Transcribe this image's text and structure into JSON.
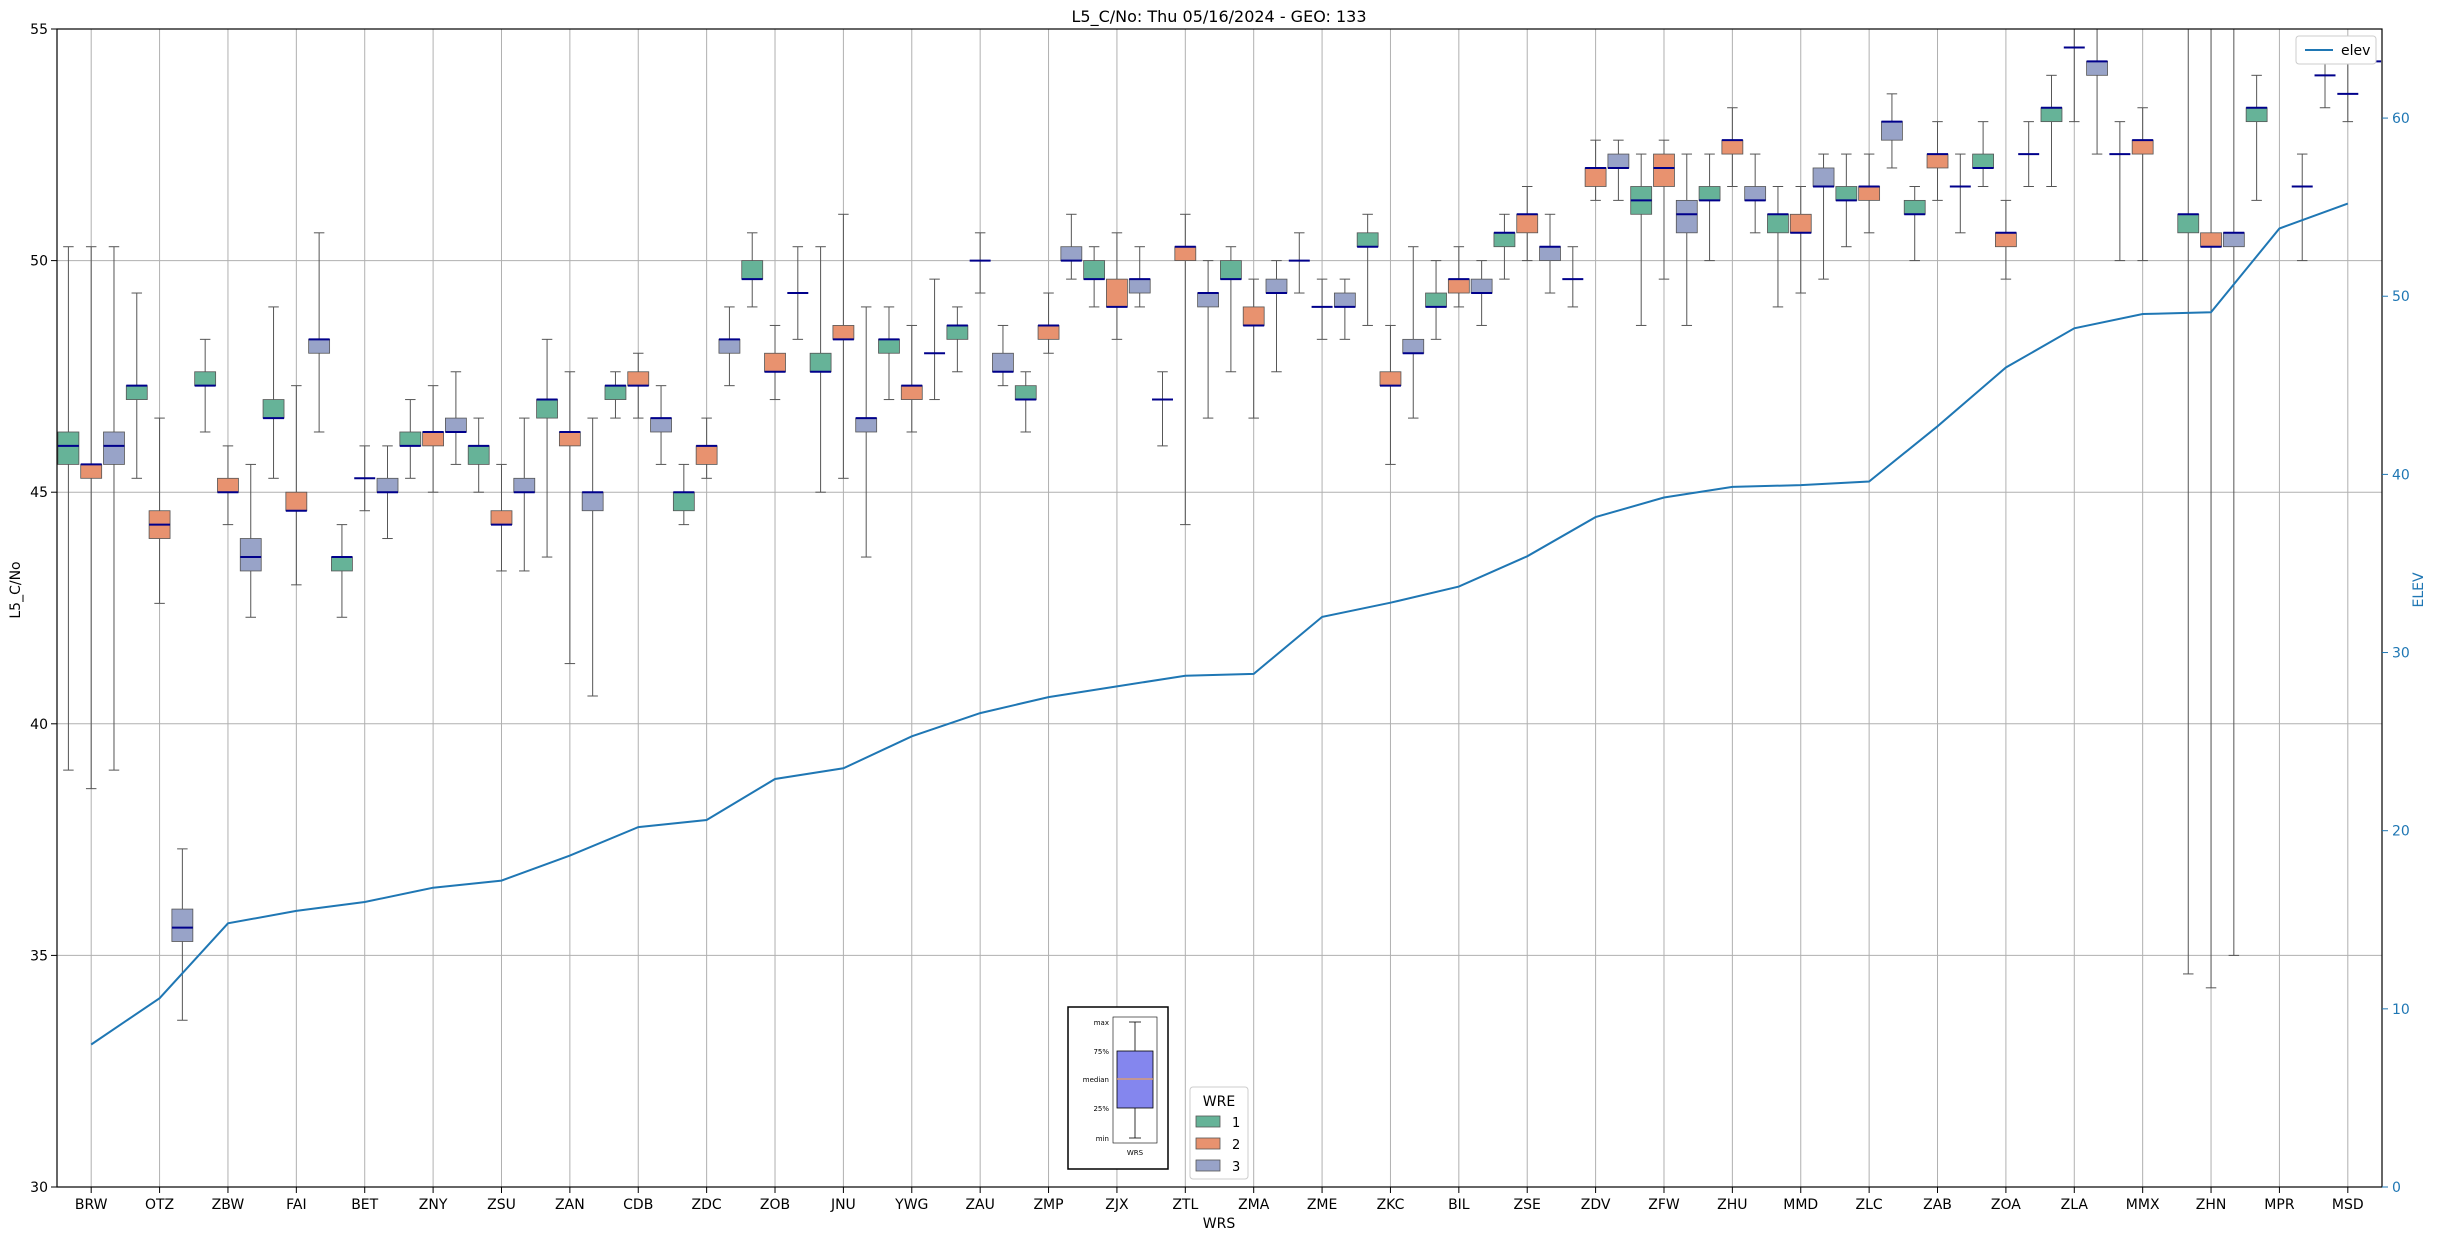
{
  "chart_data": {
    "type": "box",
    "title": "L5_C/No: Thu 05/16/2024 - GEO: 133",
    "xlabel": "WRS",
    "ylabel": "L5_C/No",
    "y2label": "ELEV",
    "ylim": [
      30,
      55
    ],
    "y2lim": [
      0,
      65
    ],
    "yticks": [
      "30",
      "35",
      "40",
      "45",
      "50",
      "55"
    ],
    "y2ticks": [
      "0",
      "10",
      "20",
      "30",
      "40",
      "50",
      "60"
    ],
    "grid": true,
    "categories": [
      "BRW",
      "OTZ",
      "ZBW",
      "FAI",
      "BET",
      "ZNY",
      "ZSU",
      "ZAN",
      "CDB",
      "ZDC",
      "ZOB",
      "JNU",
      "YWG",
      "ZAU",
      "ZMP",
      "ZJX",
      "ZTL",
      "ZMA",
      "ZME",
      "ZKC",
      "BIL",
      "ZSE",
      "ZDV",
      "ZFW",
      "ZHU",
      "MMD",
      "ZLC",
      "ZAB",
      "ZOA",
      "ZLA",
      "MMX",
      "ZHN",
      "MPR",
      "MSD"
    ],
    "wre_legend": {
      "title": "WRE",
      "items": [
        {
          "label": "1",
          "color": "#66b398"
        },
        {
          "label": "2",
          "color": "#e8926f"
        },
        {
          "label": "3",
          "color": "#98a3c8"
        }
      ]
    },
    "elev_legend": {
      "label": "elev",
      "color": "#1f77b4"
    },
    "key_box": {
      "labels": [
        "max",
        "75%",
        "median",
        "25%",
        "min"
      ],
      "xlabel": "WRS"
    },
    "median_color": "#00008b",
    "boxes": [
      {
        "cat": "BRW",
        "wre": 1,
        "min": 39.0,
        "q1": 45.6,
        "median": 46.0,
        "q3": 46.3,
        "max": 50.3
      },
      {
        "cat": "BRW",
        "wre": 2,
        "min": 38.6,
        "q1": 45.3,
        "median": 45.6,
        "q3": 45.6,
        "max": 50.3
      },
      {
        "cat": "BRW",
        "wre": 3,
        "min": 39.0,
        "q1": 45.6,
        "median": 46.0,
        "q3": 46.3,
        "max": 50.3
      },
      {
        "cat": "OTZ",
        "wre": 1,
        "min": 45.3,
        "q1": 47.0,
        "median": 47.3,
        "q3": 47.3,
        "max": 49.3
      },
      {
        "cat": "OTZ",
        "wre": 2,
        "min": 42.6,
        "q1": 44.0,
        "median": 44.3,
        "q3": 44.6,
        "max": 46.6
      },
      {
        "cat": "OTZ",
        "wre": 3,
        "min": 33.6,
        "q1": 35.3,
        "median": 35.6,
        "q3": 36.0,
        "max": 37.3
      },
      {
        "cat": "ZBW",
        "wre": 1,
        "min": 46.3,
        "q1": 47.3,
        "median": 47.3,
        "q3": 47.6,
        "max": 48.3
      },
      {
        "cat": "ZBW",
        "wre": 2,
        "min": 44.3,
        "q1": 45.0,
        "median": 45.0,
        "q3": 45.3,
        "max": 46.0
      },
      {
        "cat": "ZBW",
        "wre": 3,
        "min": 42.3,
        "q1": 43.3,
        "median": 43.6,
        "q3": 44.0,
        "max": 45.6
      },
      {
        "cat": "FAI",
        "wre": 1,
        "min": 45.3,
        "q1": 46.6,
        "median": 46.6,
        "q3": 47.0,
        "max": 49.0
      },
      {
        "cat": "FAI",
        "wre": 2,
        "min": 43.0,
        "q1": 44.6,
        "median": 44.6,
        "q3": 45.0,
        "max": 47.3
      },
      {
        "cat": "FAI",
        "wre": 3,
        "min": 46.3,
        "q1": 48.0,
        "median": 48.3,
        "q3": 48.3,
        "max": 50.6
      },
      {
        "cat": "BET",
        "wre": 1,
        "min": 42.3,
        "q1": 43.3,
        "median": 43.6,
        "q3": 43.6,
        "max": 44.3
      },
      {
        "cat": "BET",
        "wre": 2,
        "min": 44.6,
        "q1": 45.3,
        "median": 45.3,
        "q3": 45.3,
        "max": 46.0
      },
      {
        "cat": "BET",
        "wre": 3,
        "min": 44.0,
        "q1": 45.0,
        "median": 45.0,
        "q3": 45.3,
        "max": 46.0
      },
      {
        "cat": "ZNY",
        "wre": 1,
        "min": 45.3,
        "q1": 46.0,
        "median": 46.0,
        "q3": 46.3,
        "max": 47.0
      },
      {
        "cat": "ZNY",
        "wre": 2,
        "min": 45.0,
        "q1": 46.0,
        "median": 46.3,
        "q3": 46.3,
        "max": 47.3
      },
      {
        "cat": "ZNY",
        "wre": 3,
        "min": 45.6,
        "q1": 46.3,
        "median": 46.3,
        "q3": 46.6,
        "max": 47.6
      },
      {
        "cat": "ZSU",
        "wre": 1,
        "min": 45.0,
        "q1": 45.6,
        "median": 46.0,
        "q3": 46.0,
        "max": 46.6
      },
      {
        "cat": "ZSU",
        "wre": 2,
        "min": 43.3,
        "q1": 44.3,
        "median": 44.3,
        "q3": 44.6,
        "max": 45.6
      },
      {
        "cat": "ZSU",
        "wre": 3,
        "min": 43.3,
        "q1": 45.0,
        "median": 45.0,
        "q3": 45.3,
        "max": 46.6
      },
      {
        "cat": "ZAN",
        "wre": 1,
        "min": 43.6,
        "q1": 46.6,
        "median": 47.0,
        "q3": 47.0,
        "max": 48.3
      },
      {
        "cat": "ZAN",
        "wre": 2,
        "min": 41.3,
        "q1": 46.0,
        "median": 46.3,
        "q3": 46.3,
        "max": 47.6
      },
      {
        "cat": "ZAN",
        "wre": 3,
        "min": 40.6,
        "q1": 44.6,
        "median": 45.0,
        "q3": 45.0,
        "max": 46.6
      },
      {
        "cat": "CDB",
        "wre": 1,
        "min": 46.6,
        "q1": 47.0,
        "median": 47.3,
        "q3": 47.3,
        "max": 47.6
      },
      {
        "cat": "CDB",
        "wre": 2,
        "min": 46.6,
        "q1": 47.3,
        "median": 47.3,
        "q3": 47.6,
        "max": 48.0
      },
      {
        "cat": "CDB",
        "wre": 3,
        "min": 45.6,
        "q1": 46.3,
        "median": 46.6,
        "q3": 46.6,
        "max": 47.3
      },
      {
        "cat": "ZDC",
        "wre": 1,
        "min": 44.3,
        "q1": 44.6,
        "median": 45.0,
        "q3": 45.0,
        "max": 45.6
      },
      {
        "cat": "ZDC",
        "wre": 2,
        "min": 45.3,
        "q1": 45.6,
        "median": 46.0,
        "q3": 46.0,
        "max": 46.6
      },
      {
        "cat": "ZDC",
        "wre": 3,
        "min": 47.3,
        "q1": 48.0,
        "median": 48.3,
        "q3": 48.3,
        "max": 49.0
      },
      {
        "cat": "ZOB",
        "wre": 1,
        "min": 49.0,
        "q1": 49.6,
        "median": 49.6,
        "q3": 50.0,
        "max": 50.6
      },
      {
        "cat": "ZOB",
        "wre": 2,
        "min": 47.0,
        "q1": 47.6,
        "median": 47.6,
        "q3": 48.0,
        "max": 48.6
      },
      {
        "cat": "ZOB",
        "wre": 3,
        "min": 48.3,
        "q1": 49.3,
        "median": 49.3,
        "q3": 49.3,
        "max": 50.3
      },
      {
        "cat": "JNU",
        "wre": 1,
        "min": 45.0,
        "q1": 47.6,
        "median": 47.6,
        "q3": 48.0,
        "max": 50.3
      },
      {
        "cat": "JNU",
        "wre": 2,
        "min": 45.3,
        "q1": 48.3,
        "median": 48.3,
        "q3": 48.6,
        "max": 51.0
      },
      {
        "cat": "JNU",
        "wre": 3,
        "min": 43.6,
        "q1": 46.3,
        "median": 46.6,
        "q3": 46.6,
        "max": 49.0
      },
      {
        "cat": "YWG",
        "wre": 1,
        "min": 47.0,
        "q1": 48.0,
        "median": 48.3,
        "q3": 48.3,
        "max": 49.0
      },
      {
        "cat": "YWG",
        "wre": 2,
        "min": 46.3,
        "q1": 47.0,
        "median": 47.3,
        "q3": 47.3,
        "max": 48.6
      },
      {
        "cat": "YWG",
        "wre": 3,
        "min": 47.0,
        "q1": 48.0,
        "median": 48.0,
        "q3": 48.0,
        "max": 49.6
      },
      {
        "cat": "ZAU",
        "wre": 1,
        "min": 47.6,
        "q1": 48.3,
        "median": 48.6,
        "q3": 48.6,
        "max": 49.0
      },
      {
        "cat": "ZAU",
        "wre": 2,
        "min": 49.3,
        "q1": 50.0,
        "median": 50.0,
        "q3": 50.0,
        "max": 50.6
      },
      {
        "cat": "ZAU",
        "wre": 3,
        "min": 47.3,
        "q1": 47.6,
        "median": 47.6,
        "q3": 48.0,
        "max": 48.6
      },
      {
        "cat": "ZMP",
        "wre": 1,
        "min": 46.3,
        "q1": 47.0,
        "median": 47.0,
        "q3": 47.3,
        "max": 47.6
      },
      {
        "cat": "ZMP",
        "wre": 2,
        "min": 48.0,
        "q1": 48.3,
        "median": 48.6,
        "q3": 48.6,
        "max": 49.3
      },
      {
        "cat": "ZMP",
        "wre": 3,
        "min": 49.6,
        "q1": 50.0,
        "median": 50.0,
        "q3": 50.3,
        "max": 51.0
      },
      {
        "cat": "ZJX",
        "wre": 1,
        "min": 49.0,
        "q1": 49.6,
        "median": 49.6,
        "q3": 50.0,
        "max": 50.3
      },
      {
        "cat": "ZJX",
        "wre": 2,
        "min": 48.3,
        "q1": 49.0,
        "median": 49.0,
        "q3": 49.6,
        "max": 50.6
      },
      {
        "cat": "ZJX",
        "wre": 3,
        "min": 49.0,
        "q1": 49.3,
        "median": 49.6,
        "q3": 49.6,
        "max": 50.3
      },
      {
        "cat": "ZTL",
        "wre": 1,
        "min": 46.0,
        "q1": 47.0,
        "median": 47.0,
        "q3": 47.0,
        "max": 47.6
      },
      {
        "cat": "ZTL",
        "wre": 2,
        "min": 44.3,
        "q1": 50.0,
        "median": 50.3,
        "q3": 50.3,
        "max": 51.0
      },
      {
        "cat": "ZTL",
        "wre": 3,
        "min": 46.6,
        "q1": 49.0,
        "median": 49.3,
        "q3": 49.3,
        "max": 50.0
      },
      {
        "cat": "ZMA",
        "wre": 1,
        "min": 47.6,
        "q1": 49.6,
        "median": 49.6,
        "q3": 50.0,
        "max": 50.3
      },
      {
        "cat": "ZMA",
        "wre": 2,
        "min": 46.6,
        "q1": 48.6,
        "median": 48.6,
        "q3": 49.0,
        "max": 49.6
      },
      {
        "cat": "ZMA",
        "wre": 3,
        "min": 47.6,
        "q1": 49.3,
        "median": 49.3,
        "q3": 49.6,
        "max": 50.0
      },
      {
        "cat": "ZME",
        "wre": 1,
        "min": 49.3,
        "q1": 50.0,
        "median": 50.0,
        "q3": 50.0,
        "max": 50.6
      },
      {
        "cat": "ZME",
        "wre": 2,
        "min": 48.3,
        "q1": 49.0,
        "median": 49.0,
        "q3": 49.0,
        "max": 49.6
      },
      {
        "cat": "ZME",
        "wre": 3,
        "min": 48.3,
        "q1": 49.0,
        "median": 49.0,
        "q3": 49.3,
        "max": 49.6
      },
      {
        "cat": "ZKC",
        "wre": 1,
        "min": 48.6,
        "q1": 50.3,
        "median": 50.3,
        "q3": 50.6,
        "max": 51.0
      },
      {
        "cat": "ZKC",
        "wre": 2,
        "min": 45.6,
        "q1": 47.3,
        "median": 47.3,
        "q3": 47.6,
        "max": 48.6
      },
      {
        "cat": "ZKC",
        "wre": 3,
        "min": 46.6,
        "q1": 48.0,
        "median": 48.0,
        "q3": 48.3,
        "max": 50.3
      },
      {
        "cat": "BIL",
        "wre": 1,
        "min": 48.3,
        "q1": 49.0,
        "median": 49.0,
        "q3": 49.3,
        "max": 50.0
      },
      {
        "cat": "BIL",
        "wre": 2,
        "min": 49.0,
        "q1": 49.3,
        "median": 49.6,
        "q3": 49.6,
        "max": 50.3
      },
      {
        "cat": "BIL",
        "wre": 3,
        "min": 48.6,
        "q1": 49.3,
        "median": 49.3,
        "q3": 49.6,
        "max": 50.0
      },
      {
        "cat": "ZSE",
        "wre": 1,
        "min": 49.6,
        "q1": 50.3,
        "median": 50.6,
        "q3": 50.6,
        "max": 51.0
      },
      {
        "cat": "ZSE",
        "wre": 2,
        "min": 50.0,
        "q1": 50.6,
        "median": 51.0,
        "q3": 51.0,
        "max": 51.6
      },
      {
        "cat": "ZSE",
        "wre": 3,
        "min": 49.3,
        "q1": 50.0,
        "median": 50.3,
        "q3": 50.3,
        "max": 51.0
      },
      {
        "cat": "ZDV",
        "wre": 1,
        "min": 49.0,
        "q1": 49.6,
        "median": 49.6,
        "q3": 49.6,
        "max": 50.3
      },
      {
        "cat": "ZDV",
        "wre": 2,
        "min": 51.3,
        "q1": 51.6,
        "median": 52.0,
        "q3": 52.0,
        "max": 52.6
      },
      {
        "cat": "ZDV",
        "wre": 3,
        "min": 51.3,
        "q1": 52.0,
        "median": 52.0,
        "q3": 52.3,
        "max": 52.6
      },
      {
        "cat": "ZFW",
        "wre": 1,
        "min": 48.6,
        "q1": 51.0,
        "median": 51.3,
        "q3": 51.6,
        "max": 52.3
      },
      {
        "cat": "ZFW",
        "wre": 2,
        "min": 49.6,
        "q1": 51.6,
        "median": 52.0,
        "q3": 52.3,
        "max": 52.6
      },
      {
        "cat": "ZFW",
        "wre": 3,
        "min": 48.6,
        "q1": 50.6,
        "median": 51.0,
        "q3": 51.3,
        "max": 52.3
      },
      {
        "cat": "ZHU",
        "wre": 1,
        "min": 50.0,
        "q1": 51.3,
        "median": 51.3,
        "q3": 51.6,
        "max": 52.3
      },
      {
        "cat": "ZHU",
        "wre": 2,
        "min": 51.6,
        "q1": 52.3,
        "median": 52.6,
        "q3": 52.6,
        "max": 53.3
      },
      {
        "cat": "ZHU",
        "wre": 3,
        "min": 50.6,
        "q1": 51.3,
        "median": 51.3,
        "q3": 51.6,
        "max": 52.3
      },
      {
        "cat": "MMD",
        "wre": 1,
        "min": 49.0,
        "q1": 50.6,
        "median": 51.0,
        "q3": 51.0,
        "max": 51.6
      },
      {
        "cat": "MMD",
        "wre": 2,
        "min": 49.3,
        "q1": 50.6,
        "median": 50.6,
        "q3": 51.0,
        "max": 51.6
      },
      {
        "cat": "MMD",
        "wre": 3,
        "min": 49.6,
        "q1": 51.6,
        "median": 51.6,
        "q3": 52.0,
        "max": 52.3
      },
      {
        "cat": "ZLC",
        "wre": 1,
        "min": 50.3,
        "q1": 51.3,
        "median": 51.3,
        "q3": 51.6,
        "max": 52.3
      },
      {
        "cat": "ZLC",
        "wre": 2,
        "min": 50.6,
        "q1": 51.3,
        "median": 51.6,
        "q3": 51.6,
        "max": 52.3
      },
      {
        "cat": "ZLC",
        "wre": 3,
        "min": 52.0,
        "q1": 52.6,
        "median": 53.0,
        "q3": 53.0,
        "max": 53.6
      },
      {
        "cat": "ZAB",
        "wre": 1,
        "min": 50.0,
        "q1": 51.0,
        "median": 51.0,
        "q3": 51.3,
        "max": 51.6
      },
      {
        "cat": "ZAB",
        "wre": 2,
        "min": 51.3,
        "q1": 52.0,
        "median": 52.3,
        "q3": 52.3,
        "max": 53.0
      },
      {
        "cat": "ZAB",
        "wre": 3,
        "min": 50.6,
        "q1": 51.6,
        "median": 51.6,
        "q3": 51.6,
        "max": 52.3
      },
      {
        "cat": "ZOA",
        "wre": 1,
        "min": 51.6,
        "q1": 52.0,
        "median": 52.0,
        "q3": 52.3,
        "max": 53.0
      },
      {
        "cat": "ZOA",
        "wre": 2,
        "min": 49.6,
        "q1": 50.3,
        "median": 50.6,
        "q3": 50.6,
        "max": 51.3
      },
      {
        "cat": "ZOA",
        "wre": 3,
        "min": 51.6,
        "q1": 52.3,
        "median": 52.3,
        "q3": 52.3,
        "max": 53.0
      },
      {
        "cat": "ZLA",
        "wre": 1,
        "min": 51.6,
        "q1": 53.0,
        "median": 53.3,
        "q3": 53.3,
        "max": 54.0
      },
      {
        "cat": "ZLA",
        "wre": 2,
        "min": 53.0,
        "q1": 54.6,
        "median": 54.6,
        "q3": 54.6,
        "max": 55.0
      },
      {
        "cat": "ZLA",
        "wre": 3,
        "min": 52.3,
        "q1": 54.0,
        "median": 54.3,
        "q3": 54.3,
        "max": 55.0
      },
      {
        "cat": "MMX",
        "wre": 1,
        "min": 50.0,
        "q1": 52.3,
        "median": 52.3,
        "q3": 52.3,
        "max": 53.0
      },
      {
        "cat": "MMX",
        "wre": 2,
        "min": 50.0,
        "q1": 52.3,
        "median": 52.6,
        "q3": 52.6,
        "max": 53.3
      },
      {
        "cat": "ZHN",
        "wre": 1,
        "min": 34.6,
        "q1": 50.6,
        "median": 51.0,
        "q3": 51.0,
        "max": 55.0
      },
      {
        "cat": "ZHN",
        "wre": 2,
        "min": 34.3,
        "q1": 50.3,
        "median": 50.3,
        "q3": 50.6,
        "max": 55.0
      },
      {
        "cat": "ZHN",
        "wre": 3,
        "min": 35.0,
        "q1": 50.3,
        "median": 50.6,
        "q3": 50.6,
        "max": 55.0
      },
      {
        "cat": "MPR",
        "wre": 1,
        "min": 51.3,
        "q1": 53.0,
        "median": 53.3,
        "q3": 53.3,
        "max": 54.0
      },
      {
        "cat": "MPR",
        "wre": 3,
        "min": 50.0,
        "q1": 51.6,
        "median": 51.6,
        "q3": 51.6,
        "max": 52.3
      },
      {
        "cat": "MSD",
        "wre": 1,
        "min": 53.3,
        "q1": 54.0,
        "median": 54.0,
        "q3": 54.0,
        "max": 54.6
      },
      {
        "cat": "MSD",
        "wre": 2,
        "min": 53.0,
        "q1": 53.6,
        "median": 53.6,
        "q3": 53.6,
        "max": 54.3
      },
      {
        "cat": "MSD",
        "wre": 3,
        "min": 54.3,
        "q1": 54.3,
        "median": 54.3,
        "q3": 54.3,
        "max": 54.3
      }
    ],
    "elev": [
      8.0,
      10.6,
      14.8,
      15.5,
      16.0,
      16.8,
      17.2,
      18.6,
      20.2,
      20.6,
      22.9,
      23.5,
      25.3,
      26.6,
      27.5,
      28.1,
      28.7,
      28.8,
      32.0,
      32.8,
      33.7,
      35.4,
      37.6,
      38.7,
      39.3,
      39.4,
      39.6,
      42.7,
      46.0,
      48.2,
      49.0,
      49.1,
      53.8,
      55.2
    ]
  }
}
